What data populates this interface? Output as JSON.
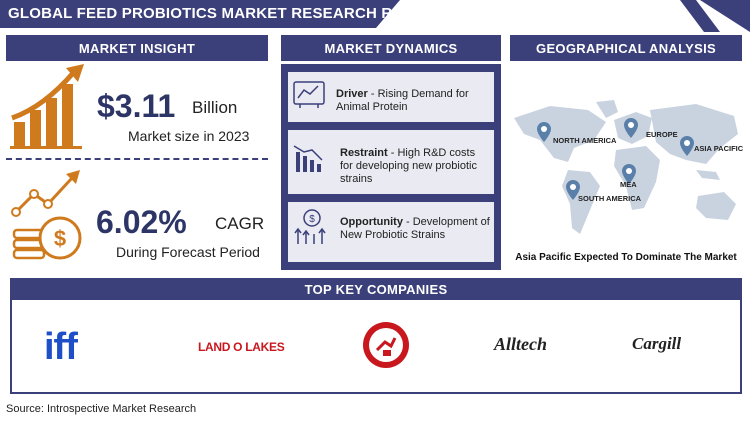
{
  "header": {
    "title": "GLOBAL FEED PROBIOTICS MARKET RESEARCH REPORT"
  },
  "market_insight": {
    "heading": "MARKET INSIGHT",
    "market_value": "$3.11",
    "market_unit": "Billion",
    "market_caption": "Market size in 2023",
    "cagr_value": "6.02%",
    "cagr_unit": "CAGR",
    "cagr_caption": "During Forecast Period"
  },
  "market_dynamics": {
    "heading": "MARKET DYNAMICS",
    "items": [
      {
        "label": "Driver",
        "text": " - Rising Demand for Animal Protein",
        "icon": "chart-monitor-icon"
      },
      {
        "label": "Restraint",
        "text": " - High R&D costs for developing new probiotic strains",
        "icon": "declining-bars-icon"
      },
      {
        "label": "Opportunity",
        "text": " - Development of New Probiotic Strains",
        "icon": "rising-opportunity-icon"
      }
    ]
  },
  "geography": {
    "heading": "GEOGRAPHICAL ANALYSIS",
    "regions": [
      "NORTH AMERICA",
      "EUROPE",
      "ASIA PACIFIC",
      "MEA",
      "SOUTH AMERICA"
    ],
    "footnote": "Asia Pacific Expected To Dominate The Market"
  },
  "companies": {
    "heading": "TOP KEY COMPANIES",
    "logos": [
      "iff",
      "LAND O LAKES",
      "ARM & HAMMER",
      "Alltech",
      "Cargill"
    ]
  },
  "source": "Source: Introspective Market Research",
  "colors": {
    "navy": "#3b3f7a",
    "orange": "#d07a1e",
    "map": "#c9d3e0",
    "pin": "#5a7fa8"
  }
}
